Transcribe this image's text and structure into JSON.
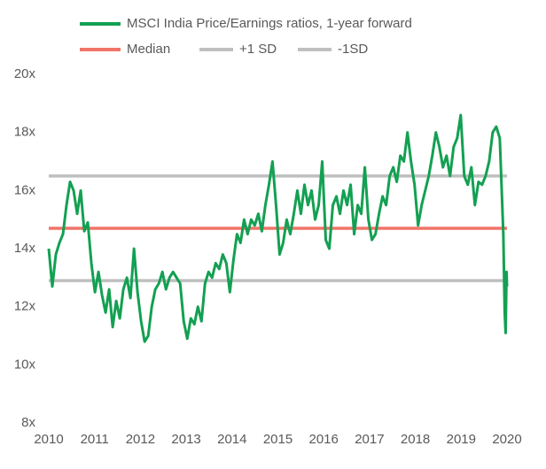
{
  "chart_data": {
    "type": "line",
    "xlim": [
      2010,
      2020
    ],
    "xticks": [
      2010,
      2011,
      2012,
      2013,
      2014,
      2015,
      2016,
      2017,
      2018,
      2019,
      2020
    ],
    "ylim": [
      8,
      20
    ],
    "yticks": [
      {
        "value": 8,
        "label": "8x"
      },
      {
        "value": 10,
        "label": "10x"
      },
      {
        "value": 12,
        "label": "12x"
      },
      {
        "value": 14,
        "label": "14x"
      },
      {
        "value": 16,
        "label": "16x"
      },
      {
        "value": 18,
        "label": "18x"
      },
      {
        "value": 20,
        "label": "20x"
      }
    ],
    "grid": false,
    "x": [
      2010,
      2010.0775,
      2010.155,
      2010.2325,
      2010.31,
      2010.3875,
      2010.465,
      2010.5425,
      2010.62,
      2010.6975,
      2010.775,
      2010.8525,
      2010.93,
      2011.0075,
      2011.085,
      2011.1625,
      2011.24,
      2011.3175,
      2011.395,
      2011.4725,
      2011.55,
      2011.6275,
      2011.705,
      2011.7825,
      2011.86,
      2011.9375,
      2012.015,
      2012.0925,
      2012.17,
      2012.2475,
      2012.325,
      2012.4025,
      2012.48,
      2012.5575,
      2012.635,
      2012.7125,
      2012.79,
      2012.8675,
      2012.945,
      2013.0225,
      2013.1,
      2013.1775,
      2013.255,
      2013.3325,
      2013.41,
      2013.4875,
      2013.565,
      2013.6425,
      2013.72,
      2013.7975,
      2013.875,
      2013.9525,
      2014.03,
      2014.1075,
      2014.185,
      2014.2625,
      2014.34,
      2014.4175,
      2014.495,
      2014.5725,
      2014.65,
      2014.7275,
      2014.805,
      2014.8825,
      2014.96,
      2015.0375,
      2015.115,
      2015.1925,
      2015.27,
      2015.3475,
      2015.425,
      2015.5025,
      2015.58,
      2015.6575,
      2015.735,
      2015.8125,
      2015.89,
      2015.9675,
      2016.045,
      2016.1225,
      2016.2,
      2016.2775,
      2016.355,
      2016.4325,
      2016.51,
      2016.5875,
      2016.665,
      2016.7425,
      2016.82,
      2016.8975,
      2016.975,
      2017.0525,
      2017.13,
      2017.2075,
      2017.285,
      2017.3625,
      2017.44,
      2017.5175,
      2017.595,
      2017.6725,
      2017.75,
      2017.8275,
      2017.905,
      2017.9825,
      2018.06,
      2018.1375,
      2018.215,
      2018.2925,
      2018.37,
      2018.4475,
      2018.525,
      2018.6025,
      2018.68,
      2018.7575,
      2018.835,
      2018.9125,
      2018.99,
      2019.0675,
      2019.145,
      2019.2225,
      2019.3,
      2019.3775,
      2019.455,
      2019.5325,
      2019.61,
      2019.6875,
      2019.765,
      2019.8425,
      2019.92,
      2019.95,
      2019.97,
      2019.99,
      2020
    ],
    "series": [
      {
        "name": "MSCI India Price/Earnings ratios, 1-year forward",
        "color": "#13a052",
        "values": [
          14.0,
          12.7,
          13.8,
          14.2,
          14.5,
          15.5,
          16.3,
          16.0,
          15.2,
          16.0,
          14.6,
          14.9,
          13.5,
          12.5,
          13.2,
          12.4,
          11.8,
          12.6,
          11.3,
          12.2,
          11.6,
          12.6,
          13.0,
          12.3,
          14.0,
          12.5,
          11.5,
          10.8,
          11.0,
          12.0,
          12.6,
          12.8,
          13.2,
          12.6,
          13.0,
          13.2,
          13.0,
          12.8,
          11.5,
          10.9,
          11.6,
          11.4,
          12.0,
          11.5,
          12.8,
          13.2,
          13.0,
          13.5,
          13.3,
          13.8,
          13.5,
          12.5,
          13.6,
          14.5,
          14.2,
          15.0,
          14.5,
          15.0,
          14.8,
          15.2,
          14.6,
          15.5,
          16.2,
          17.0,
          15.5,
          13.8,
          14.2,
          15.0,
          14.5,
          15.2,
          16.0,
          15.2,
          16.2,
          15.5,
          16.0,
          15.0,
          15.5,
          17.0,
          14.3,
          14.0,
          15.5,
          15.8,
          15.2,
          16.0,
          15.5,
          16.2,
          14.5,
          15.5,
          15.2,
          16.8,
          15.0,
          14.3,
          14.5,
          15.2,
          15.8,
          15.5,
          16.5,
          16.8,
          16.3,
          17.2,
          17.0,
          18.0,
          17.0,
          16.2,
          14.8,
          15.5,
          16.0,
          16.5,
          17.2,
          18.0,
          17.5,
          16.8,
          17.2,
          16.5,
          17.5,
          17.8,
          18.6,
          16.5,
          16.2,
          16.8,
          15.5,
          16.3,
          16.2,
          16.5,
          17.0,
          18.0,
          18.2,
          17.8,
          14.5,
          11.8,
          11.1,
          13.2,
          12.7
        ]
      }
    ],
    "reference_lines": [
      {
        "name": "Median",
        "value": 14.7,
        "color": "#f07468"
      },
      {
        "name": "+1 SD",
        "value": 16.5,
        "color": "#bfbfbf"
      },
      {
        "name": "-1SD",
        "value": 12.9,
        "color": "#bfbfbf"
      }
    ]
  }
}
